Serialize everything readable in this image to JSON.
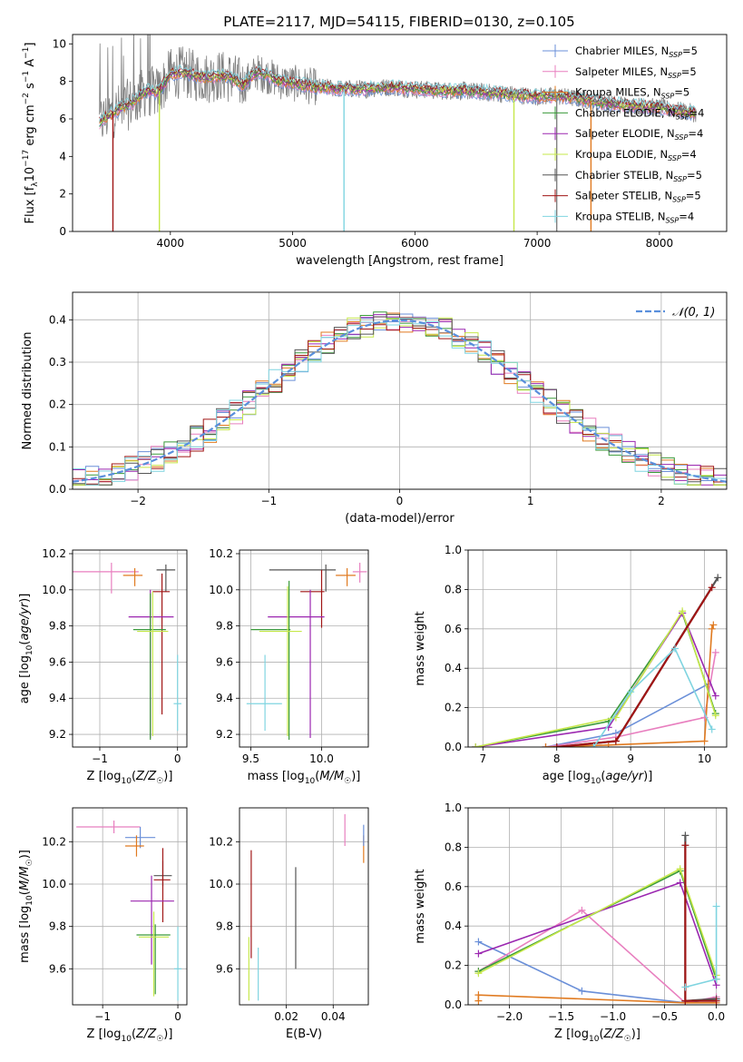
{
  "title": "PLATE=2117, MJD=54115, FIBERID=0130, z=0.105",
  "colors": {
    "chabrier_miles": "#6a8fd8",
    "salpeter_miles": "#e87fbf",
    "kroupa_miles": "#e07a20",
    "chabrier_elodie": "#3a9a3a",
    "salpeter_elodie": "#9b27b0",
    "kroupa_elodie": "#c6e84a",
    "chabrier_stelib": "#555555",
    "salpeter_stelib": "#a01515",
    "kroupa_stelib": "#7fd4e0",
    "spectrum": "#808080",
    "normal": "#5a8fdc"
  },
  "legend_entries": [
    "Chabrier MILES, N_SSP=5",
    "Salpeter MILES, N_SSP=5",
    "Kroupa MILES, N_SSP=5",
    "Chabrier ELODIE, N_SSP=4",
    "Salpeter ELODIE, N_SSP=4",
    "Kroupa ELODIE, N_SSP=4",
    "Chabrier STELIB, N_SSP=5",
    "Salpeter STELIB, N_SSP=5",
    "Kroupa STELIB, N_SSP=4"
  ],
  "chart_data": [
    {
      "id": "spectrum",
      "type": "line",
      "xlabel": "wavelength [Angstrom, rest frame]",
      "ylabel": "Flux [f_λ 10^-17 erg cm^-2 s^-1 A^-1]",
      "xlim": [
        3200,
        8550
      ],
      "ylim": [
        0,
        10.5
      ],
      "xticks": [
        4000,
        5000,
        6000,
        7000,
        8000
      ],
      "yticks": [
        0,
        2,
        4,
        6,
        8,
        10
      ],
      "continuum": {
        "x": [
          3420,
          3500,
          3600,
          3700,
          3800,
          3900,
          4000,
          4100,
          4200,
          4300,
          4400,
          4500,
          4600,
          4700,
          4800,
          4900,
          5000,
          5200,
          5400,
          5600,
          5800,
          6000,
          6200,
          6400,
          6600,
          6800,
          7000,
          7200,
          7400,
          7600,
          7800,
          8000,
          8300
        ],
        "y": [
          5.8,
          6.2,
          6.6,
          6.9,
          7.5,
          7.4,
          8.4,
          8.5,
          8.3,
          8.2,
          8.3,
          8.2,
          7.8,
          8.5,
          8.3,
          8.0,
          7.9,
          7.7,
          7.6,
          7.6,
          7.7,
          7.6,
          7.5,
          7.5,
          7.4,
          7.3,
          7.2,
          7.2,
          7.0,
          6.8,
          6.7,
          6.6,
          6.3
        ]
      },
      "dips": [
        {
          "x": 3530,
          "y": 0
        },
        {
          "x": 3910,
          "y": 0
        },
        {
          "x": 5420,
          "y": 0
        },
        {
          "x": 6810,
          "y": 0
        },
        {
          "x": 7160,
          "y": 0
        },
        {
          "x": 7440,
          "y": 0
        }
      ]
    },
    {
      "id": "residuals",
      "type": "line",
      "xlabel": "(data-model)/error",
      "ylabel": "Normed distribution",
      "xlim": [
        -2.5,
        2.5
      ],
      "ylim": [
        0,
        0.465
      ],
      "xticks": [
        -2,
        -1,
        0,
        1,
        2
      ],
      "yticks": [
        0.0,
        0.1,
        0.2,
        0.3,
        0.4
      ],
      "legend": "N(0,1)",
      "bin_width": 0.1
    },
    {
      "id": "age_vs_Z",
      "type": "scatter",
      "xlabel": "Z [log10(Z/Z☉)]",
      "ylabel": "age [log10(age/yr)]",
      "xlim": [
        -1.35,
        0.12
      ],
      "ylim": [
        9.13,
        10.22
      ],
      "xticks": [
        -1,
        0
      ],
      "yticks": [
        9.2,
        9.4,
        9.6,
        9.8,
        10.0,
        10.2
      ],
      "points": [
        {
          "model": "salpeter_miles",
          "x": -0.85,
          "xerr": [
            0.5,
            0.35
          ],
          "y": 10.1,
          "yerr": [
            0.12,
            0.05
          ]
        },
        {
          "model": "kroupa_miles",
          "x": -0.55,
          "xerr": [
            0.15,
            0.1
          ],
          "y": 10.08,
          "yerr": [
            0.06,
            0.04
          ]
        },
        {
          "model": "chabrier_stelib",
          "x": -0.15,
          "xerr": [
            0.12,
            0.12
          ],
          "y": 10.11,
          "yerr": [
            0.12,
            0.03
          ]
        },
        {
          "model": "salpeter_stelib",
          "x": -0.2,
          "xerr": [
            0.12,
            0.1
          ],
          "y": 9.99,
          "yerr": [
            0.68,
            0.1
          ]
        },
        {
          "model": "salpeter_elodie",
          "x": -0.35,
          "xerr": [
            0.28,
            0.3
          ],
          "y": 9.85,
          "yerr": [
            0.67,
            0.15
          ]
        },
        {
          "model": "chabrier_elodie",
          "x": -0.35,
          "xerr": [
            0.22,
            0.2
          ],
          "y": 9.78,
          "yerr": [
            0.61,
            0.2
          ]
        },
        {
          "model": "kroupa_elodie",
          "x": -0.32,
          "xerr": [
            0.2,
            0.2
          ],
          "y": 9.77,
          "yerr": [
            0.58,
            0.22
          ]
        },
        {
          "model": "kroupa_stelib",
          "x": 0.0,
          "xerr": [
            0.05,
            0.05
          ],
          "y": 9.37,
          "yerr": [
            0.15,
            0.27
          ]
        }
      ]
    },
    {
      "id": "age_vs_mass",
      "type": "scatter",
      "xlabel": "mass [log10(M/M☉)]",
      "ylabel": "",
      "xlim": [
        9.42,
        10.33
      ],
      "ylim": [
        9.13,
        10.22
      ],
      "xticks": [
        9.5,
        10.0
      ],
      "yticks": [
        9.2,
        9.4,
        9.6,
        9.8,
        10.0,
        10.2
      ],
      "points": [
        {
          "model": "chabrier_stelib",
          "x": 10.03,
          "xerr": [
            0.4,
            0.07
          ],
          "y": 10.11,
          "yerr": [
            0.12,
            0.03
          ]
        },
        {
          "model": "kroupa_miles",
          "x": 10.18,
          "xerr": [
            0.08,
            0.06
          ],
          "y": 10.08,
          "yerr": [
            0.06,
            0.04
          ]
        },
        {
          "model": "salpeter_miles",
          "x": 10.27,
          "xerr": [
            0.05,
            0.05
          ],
          "y": 10.1,
          "yerr": [
            0.06,
            0.05
          ]
        },
        {
          "model": "salpeter_stelib",
          "x": 10.0,
          "xerr": [
            0.15,
            0.02
          ],
          "y": 9.99,
          "yerr": [
            0.2,
            0.12
          ]
        },
        {
          "model": "salpeter_elodie",
          "x": 9.92,
          "xerr": [
            0.3,
            0.1
          ],
          "y": 9.85,
          "yerr": [
            0.67,
            0.15
          ]
        },
        {
          "model": "chabrier_elodie",
          "x": 9.77,
          "xerr": [
            0.27,
            0.01
          ],
          "y": 9.78,
          "yerr": [
            0.61,
            0.27
          ]
        },
        {
          "model": "kroupa_elodie",
          "x": 9.76,
          "xerr": [
            0.2,
            0.1
          ],
          "y": 9.77,
          "yerr": [
            0.58,
            0.25
          ]
        },
        {
          "model": "kroupa_stelib",
          "x": 9.6,
          "xerr": [
            0.13,
            0.12
          ],
          "y": 9.37,
          "yerr": [
            0.15,
            0.27
          ]
        }
      ]
    },
    {
      "id": "weights_vs_age",
      "type": "line",
      "xlabel": "age [log10(age/yr)]",
      "ylabel": "mass weight",
      "xlim": [
        6.8,
        10.3
      ],
      "ylim": [
        0,
        1.0
      ],
      "xticks": [
        7,
        8,
        9,
        10
      ],
      "yticks": [
        0.0,
        0.2,
        0.4,
        0.6,
        0.8,
        1.0
      ],
      "series": [
        {
          "model": "chabrier_miles",
          "x": [
            7.85,
            8.8,
            10.05
          ],
          "y": [
            0.0,
            0.07,
            0.32
          ]
        },
        {
          "model": "salpeter_miles",
          "x": [
            7.85,
            8.8,
            10.0,
            10.15
          ],
          "y": [
            0.0,
            0.05,
            0.15,
            0.48
          ]
        },
        {
          "model": "kroupa_miles",
          "x": [
            7.85,
            8.7,
            10.0,
            10.1,
            10.12
          ],
          "y": [
            0.0,
            0.01,
            0.03,
            0.6,
            0.62
          ]
        },
        {
          "model": "chabrier_elodie",
          "x": [
            6.9,
            8.7,
            9.7,
            10.15
          ],
          "y": [
            0.0,
            0.13,
            0.68,
            0.17
          ]
        },
        {
          "model": "salpeter_elodie",
          "x": [
            6.9,
            8.7,
            9.7,
            10.15
          ],
          "y": [
            0.0,
            0.1,
            0.68,
            0.26
          ]
        },
        {
          "model": "kroupa_elodie",
          "x": [
            6.9,
            8.8,
            9.7,
            10.15
          ],
          "y": [
            0.0,
            0.15,
            0.69,
            0.16
          ]
        },
        {
          "model": "chabrier_stelib",
          "x": [
            8.0,
            8.8,
            10.18
          ],
          "y": [
            0.0,
            0.03,
            0.86
          ]
        },
        {
          "model": "salpeter_stelib",
          "x": [
            8.0,
            8.8,
            10.1
          ],
          "y": [
            0.0,
            0.03,
            0.81
          ]
        },
        {
          "model": "kroupa_stelib",
          "x": [
            8.5,
            9.0,
            9.6,
            10.1
          ],
          "y": [
            0.0,
            0.28,
            0.5,
            0.09
          ]
        }
      ]
    },
    {
      "id": "mass_vs_Z",
      "type": "scatter",
      "xlabel": "Z [log10(Z/Z☉)]",
      "ylabel": "mass [log10(M/M☉)]",
      "xlim": [
        -1.4,
        0.12
      ],
      "ylim": [
        9.43,
        10.36
      ],
      "xticks": [
        -1,
        0
      ],
      "yticks": [
        9.6,
        9.8,
        10.0,
        10.2
      ],
      "points": [
        {
          "model": "salpeter_miles",
          "x": -0.85,
          "xerr": [
            0.5,
            0.35
          ],
          "y": 10.27,
          "yerr": [
            0.03,
            0.03
          ]
        },
        {
          "model": "chabrier_miles",
          "x": -0.5,
          "xerr": [
            0.2,
            0.2
          ],
          "y": 10.22,
          "yerr": [
            0.05,
            0.05
          ]
        },
        {
          "model": "kroupa_miles",
          "x": -0.55,
          "xerr": [
            0.15,
            0.1
          ],
          "y": 10.18,
          "yerr": [
            0.05,
            0.05
          ]
        },
        {
          "model": "chabrier_stelib",
          "x": -0.2,
          "xerr": [
            0.12,
            0.12
          ],
          "y": 10.04,
          "yerr": [
            0.05,
            0.07
          ]
        },
        {
          "model": "salpeter_stelib",
          "x": -0.2,
          "xerr": [
            0.12,
            0.1
          ],
          "y": 10.02,
          "yerr": [
            0.2,
            0.15
          ]
        },
        {
          "model": "salpeter_elodie",
          "x": -0.35,
          "xerr": [
            0.28,
            0.3
          ],
          "y": 9.92,
          "yerr": [
            0.3,
            0.12
          ]
        },
        {
          "model": "chabrier_elodie",
          "x": -0.3,
          "xerr": [
            0.25,
            0.2
          ],
          "y": 9.76,
          "yerr": [
            0.28,
            0.05
          ]
        },
        {
          "model": "kroupa_elodie",
          "x": -0.32,
          "xerr": [
            0.2,
            0.2
          ],
          "y": 9.75,
          "yerr": [
            0.28,
            0.12
          ]
        },
        {
          "model": "kroupa_stelib",
          "x": 0.0,
          "xerr": [
            0.05,
            0.05
          ],
          "y": 9.6,
          "yerr": [
            0.15,
            0.2
          ]
        }
      ]
    },
    {
      "id": "mass_vs_ebv",
      "type": "scatter",
      "xlabel": "E(B-V)",
      "ylabel": "",
      "xlim": [
        0.0,
        0.055
      ],
      "ylim": [
        9.43,
        10.36
      ],
      "xticks": [
        0.02,
        0.04
      ],
      "yticks": [
        9.6,
        9.8,
        10.0,
        10.2
      ],
      "points": [
        {
          "model": "salpeter_stelib",
          "x": 0.005,
          "xerr": [
            0,
            0
          ],
          "y": 9.9,
          "yerr": [
            0.25,
            0.26
          ]
        },
        {
          "model": "kroupa_elodie",
          "x": 0.004,
          "xerr": [
            0,
            0
          ],
          "y": 9.55,
          "yerr": [
            0.1,
            0.2
          ]
        },
        {
          "model": "kroupa_stelib",
          "x": 0.008,
          "xerr": [
            0,
            0
          ],
          "y": 9.55,
          "yerr": [
            0.1,
            0.15
          ]
        },
        {
          "model": "chabrier_stelib",
          "x": 0.024,
          "xerr": [
            0,
            0
          ],
          "y": 9.8,
          "yerr": [
            0.2,
            0.28
          ]
        },
        {
          "model": "salpeter_miles",
          "x": 0.045,
          "xerr": [
            0,
            0
          ],
          "y": 10.25,
          "yerr": [
            0.07,
            0.08
          ]
        },
        {
          "model": "kroupa_miles",
          "x": 0.053,
          "xerr": [
            0,
            0
          ],
          "y": 10.18,
          "yerr": [
            0.08,
            0.05
          ]
        },
        {
          "model": "chabrier_miles",
          "x": 0.053,
          "xerr": [
            0,
            0
          ],
          "y": 10.23,
          "yerr": [
            0.05,
            0.05
          ]
        }
      ]
    },
    {
      "id": "weights_vs_Z",
      "type": "line",
      "xlabel": "Z [log10(Z/Z☉)]",
      "ylabel": "mass weight",
      "xlim": [
        -2.4,
        0.1
      ],
      "ylim": [
        0,
        1.0
      ],
      "xticks": [
        -2.0,
        -1.5,
        -1.0,
        -0.5,
        0.0
      ],
      "yticks": [
        0.0,
        0.2,
        0.4,
        0.6,
        0.8,
        1.0
      ],
      "series": [
        {
          "model": "chabrier_miles",
          "x": [
            -2.3,
            -1.3,
            -0.3,
            0.0
          ],
          "y": [
            0.32,
            0.07,
            0.01,
            0.03
          ]
        },
        {
          "model": "salpeter_miles",
          "x": [
            -2.3,
            -1.3,
            -0.3,
            0.0
          ],
          "y": [
            0.17,
            0.48,
            0.01,
            0.04
          ]
        },
        {
          "model": "kroupa_miles",
          "x": [
            -2.3,
            -2.3,
            -0.3,
            0.0
          ],
          "y": [
            0.02,
            0.05,
            0.01,
            0.01
          ]
        },
        {
          "model": "chabrier_elodie",
          "x": [
            -2.3,
            -0.35,
            0.0
          ],
          "y": [
            0.17,
            0.68,
            0.13
          ]
        },
        {
          "model": "salpeter_elodie",
          "x": [
            -2.3,
            -0.35,
            0.0
          ],
          "y": [
            0.26,
            0.62,
            0.1
          ]
        },
        {
          "model": "kroupa_elodie",
          "x": [
            -2.3,
            -0.35,
            0.0
          ],
          "y": [
            0.16,
            0.69,
            0.15
          ]
        },
        {
          "model": "chabrier_stelib",
          "x": [
            -0.3,
            -0.3,
            0.0
          ],
          "y": [
            0.86,
            0.02,
            0.03
          ]
        },
        {
          "model": "salpeter_stelib",
          "x": [
            -0.3,
            -0.3,
            0.0
          ],
          "y": [
            0.81,
            0.02,
            0.02
          ]
        },
        {
          "model": "kroupa_stelib",
          "x": [
            -0.3,
            0.0,
            0.0
          ],
          "y": [
            0.09,
            0.13,
            0.5
          ]
        }
      ]
    }
  ]
}
